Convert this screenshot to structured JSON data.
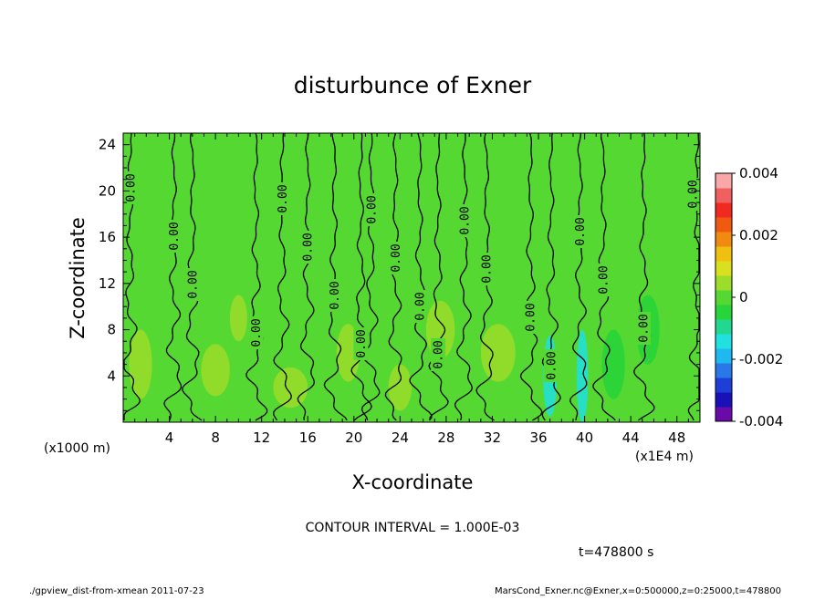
{
  "chart_data": {
    "type": "heatmap",
    "title": "disturbunce of Exner",
    "xlabel": "X-coordinate",
    "ylabel": "Z-coordinate",
    "x_unit_label": "(x1000 m)",
    "x_scale_label": "(x1E4 m)",
    "xlim": [
      0,
      50
    ],
    "ylim": [
      0,
      25
    ],
    "x_ticks": [
      "4",
      "8",
      "12",
      "16",
      "20",
      "24",
      "28",
      "32",
      "36",
      "40",
      "44",
      "48"
    ],
    "y_ticks": [
      "4",
      "8",
      "12",
      "16",
      "20",
      "24"
    ],
    "colorbar": {
      "min": -0.004,
      "max": 0.004,
      "tick_labels": [
        "0.004",
        "0.002",
        "0",
        "-0.002",
        "-0.004"
      ],
      "tick_values": [
        0.004,
        0.002,
        0,
        -0.002,
        -0.004
      ],
      "colors": [
        "#6a0aa8",
        "#1a10b8",
        "#1d3fd8",
        "#2a78e8",
        "#20b8f0",
        "#20e0e0",
        "#22d890",
        "#27d43a",
        "#55d831",
        "#9cdc2a",
        "#d8e020",
        "#f0c010",
        "#f08a10",
        "#f05a10",
        "#f02a20",
        "#f06060",
        "#f8a8a8"
      ]
    },
    "background_value": 0.0,
    "contour_interval": "CONTOUR INTERVAL = 1.000E-03",
    "contour_label": "0.00",
    "contours_x": [
      0.6,
      4.4,
      6.0,
      11.5,
      13.8,
      16.0,
      18.3,
      20.6,
      21.5,
      23.6,
      25.7,
      27.3,
      29.6,
      31.5,
      35.3,
      37.1,
      39.6,
      41.6,
      45.1,
      49.8
    ],
    "patches": [
      {
        "x": 8.0,
        "z": 4.5,
        "w": 2.5,
        "h": 4.5,
        "value": 0.0006
      },
      {
        "x": 10.0,
        "z": 9.0,
        "w": 1.5,
        "h": 4.0,
        "value": 0.0004
      },
      {
        "x": 14.5,
        "z": 3.0,
        "w": 3.0,
        "h": 3.5,
        "value": 0.0005
      },
      {
        "x": 19.5,
        "z": 6.0,
        "w": 2.0,
        "h": 5.0,
        "value": 0.0004
      },
      {
        "x": 24.0,
        "z": 3.0,
        "w": 2.0,
        "h": 4.0,
        "value": 0.0003
      },
      {
        "x": 27.5,
        "z": 8.0,
        "w": 2.5,
        "h": 5.0,
        "value": 0.0005
      },
      {
        "x": 32.5,
        "z": 6.0,
        "w": 3.0,
        "h": 5.0,
        "value": 0.0004
      },
      {
        "x": 37.0,
        "z": 4.0,
        "w": 1.2,
        "h": 7.0,
        "value": -0.0012
      },
      {
        "x": 39.8,
        "z": 4.0,
        "w": 1.0,
        "h": 8.0,
        "value": -0.0015
      },
      {
        "x": 42.5,
        "z": 5.0,
        "w": 2.0,
        "h": 6.0,
        "value": -0.0007
      },
      {
        "x": 45.5,
        "z": 8.0,
        "w": 2.0,
        "h": 6.0,
        "value": -0.0006
      },
      {
        "x": 1.5,
        "z": 5.0,
        "w": 2.0,
        "h": 6.0,
        "value": 0.0003
      }
    ],
    "time_label": "t=478800 s",
    "footer_left": "./gpview_dist-from-xmean  2011-07-23",
    "footer_right": "MarsCond_Exner.nc@Exner,x=0:500000,z=0:25000,t=478800"
  }
}
